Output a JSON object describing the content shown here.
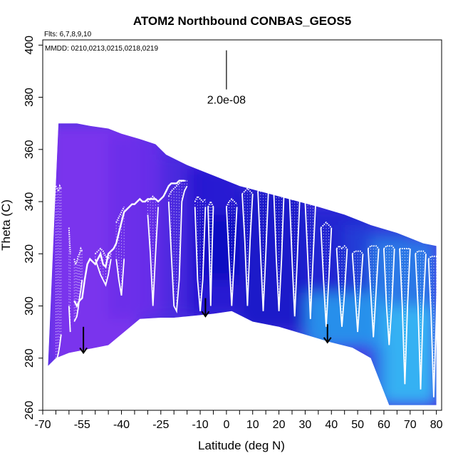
{
  "chart_data": {
    "type": "curtain",
    "title": "ATOM2 Northbound CONBAS_GEOS5",
    "subtitle_flights": "Flts: 6,7,8,9,10",
    "subtitle_dates": "MMDD: 0210,0213,0215,0218,0219",
    "xlabel": "Latitude (deg N)",
    "ylabel": "Theta (C)",
    "xlim": [
      -70,
      82
    ],
    "ylim": [
      260,
      402
    ],
    "xticks": [
      -70,
      -55,
      -40,
      -25,
      -10,
      0,
      10,
      20,
      30,
      40,
      50,
      60,
      70,
      80
    ],
    "xticks_minor": [
      -65,
      -60,
      -50,
      -45,
      -35,
      -30,
      -20,
      -15,
      -5,
      5,
      15,
      25,
      35,
      45,
      55,
      65,
      75
    ],
    "yticks": [
      260,
      280,
      300,
      320,
      340,
      360,
      380,
      400
    ],
    "scale_bar_label": "2.0e-08",
    "scale_bar": {
      "x": 0,
      "y0": 383,
      "y1": 398
    },
    "top_edge": [
      [
        -64,
        370
      ],
      [
        -57,
        370
      ],
      [
        -52,
        369
      ],
      [
        -45,
        368
      ],
      [
        -40,
        366
      ],
      [
        -33,
        364
      ],
      [
        -27,
        362
      ],
      [
        -23,
        358
      ],
      [
        -15,
        354
      ],
      [
        -5,
        350
      ],
      [
        5,
        346
      ],
      [
        20,
        342
      ],
      [
        35,
        338
      ],
      [
        45,
        335
      ],
      [
        55,
        331
      ],
      [
        65,
        328
      ],
      [
        70,
        326
      ],
      [
        75,
        324
      ],
      [
        80,
        323
      ]
    ],
    "bottom_edge": [
      [
        80,
        262
      ],
      [
        75,
        262
      ],
      [
        68,
        262
      ],
      [
        62,
        262
      ],
      [
        55,
        280
      ],
      [
        48,
        284
      ],
      [
        40,
        286
      ],
      [
        30,
        289
      ],
      [
        20,
        292
      ],
      [
        10,
        294
      ],
      [
        2,
        298
      ],
      [
        -5,
        297
      ],
      [
        -15,
        296
      ],
      [
        -20,
        295.5
      ],
      [
        -25,
        295.5
      ],
      [
        -33,
        295
      ],
      [
        -45,
        285
      ],
      [
        -55,
        283
      ],
      [
        -60,
        282
      ],
      [
        -65,
        280
      ],
      [
        -68,
        277
      ]
    ],
    "color_regions": [
      {
        "x": [
          -68,
          -33
        ],
        "y": [
          277,
          370
        ],
        "color": "#7f33ee"
      },
      {
        "x": [
          -45,
          -25
        ],
        "y": [
          295,
          366
        ],
        "color": "#6a2fea"
      },
      {
        "x": [
          -25,
          -10
        ],
        "y": [
          296,
          358
        ],
        "color": "#4a2adf"
      },
      {
        "x": [
          -15,
          5
        ],
        "y": [
          296,
          354
        ],
        "color": "#2418d0"
      },
      {
        "x": [
          -10,
          5
        ],
        "y": [
          310,
          335
        ],
        "color": "#0c0ac0"
      },
      {
        "x": [
          5,
          30
        ],
        "y": [
          290,
          346
        ],
        "color": "#1a18c6"
      },
      {
        "x": [
          30,
          55
        ],
        "y": [
          286,
          338
        ],
        "color": "#1e26cf"
      },
      {
        "x": [
          45,
          70
        ],
        "y": [
          305,
          331
        ],
        "color": "#2240d8"
      },
      {
        "x": [
          55,
          80
        ],
        "y": [
          262,
          326
        ],
        "color": "#2a7fe8"
      },
      {
        "x": [
          30,
          60
        ],
        "y": [
          284,
          305
        ],
        "color": "#2a9aee"
      },
      {
        "x": [
          60,
          80
        ],
        "y": [
          262,
          300
        ],
        "color": "#38b8f4"
      }
    ],
    "profiles": [
      {
        "x": [
          -65,
          -64.5,
          -64,
          -63.5,
          -63
        ],
        "top": [
          346,
          345,
          344,
          346,
          345
        ],
        "bottom": [
          279,
          280,
          282,
          285,
          289
        ]
      },
      {
        "x": [
          -60,
          -59.5
        ],
        "top": [
          330,
          320
        ],
        "bottom": [
          300,
          290
        ]
      },
      {
        "x": [
          -58,
          -57.5,
          -57,
          -56.5,
          -56,
          -55.5,
          -55
        ],
        "top": [
          318,
          316,
          317,
          319,
          320,
          322,
          321
        ],
        "bottom": [
          294,
          295,
          296,
          299,
          303,
          306,
          310
        ]
      },
      {
        "x": [
          -50,
          -48,
          -47,
          -46,
          -45,
          -44
        ],
        "top": [
          320,
          322,
          321,
          319,
          318,
          320
        ],
        "bottom": [
          318,
          312,
          310,
          308,
          312,
          318
        ]
      },
      {
        "x": [
          -42,
          -41,
          -40,
          -39
        ],
        "top": [
          332,
          334,
          336,
          338
        ],
        "bottom": [
          318,
          310,
          304,
          318
        ]
      },
      {
        "x": [
          -30,
          -29,
          -28,
          -27,
          -26
        ],
        "top": [
          340,
          341,
          342,
          341,
          340
        ],
        "bottom": [
          335,
          320,
          300,
          320,
          338
        ]
      },
      {
        "x": [
          -22,
          -21,
          -20,
          -19,
          -18,
          -17,
          -16,
          -15
        ],
        "top": [
          342,
          344,
          345,
          346,
          347,
          348,
          348,
          348
        ],
        "bottom": [
          340,
          320,
          300,
          298,
          310,
          340,
          344,
          346
        ]
      },
      {
        "x": [
          -12,
          -11,
          -10,
          -9,
          -8
        ],
        "top": [
          340,
          342,
          341,
          340,
          341
        ],
        "bottom": [
          338,
          310,
          298,
          310,
          338
        ]
      },
      {
        "x": [
          -7,
          -6.5,
          -6,
          -5.5,
          -5
        ],
        "top": [
          338,
          339,
          340,
          339,
          338
        ],
        "bottom": [
          338,
          320,
          300,
          320,
          338
        ]
      },
      {
        "x": [
          0,
          1,
          2,
          3,
          4
        ],
        "top": [
          338,
          340,
          341,
          340,
          339
        ],
        "bottom": [
          338,
          318,
          300,
          318,
          338
        ]
      },
      {
        "x": [
          6,
          7,
          8,
          9,
          10
        ],
        "top": [
          343,
          344,
          345,
          344,
          343
        ],
        "bottom": [
          343,
          325,
          300,
          325,
          343
        ]
      },
      {
        "x": [
          12,
          13,
          14,
          15,
          16
        ],
        "top": [
          344,
          345,
          345,
          345,
          344
        ],
        "bottom": [
          344,
          320,
          298,
          320,
          344
        ]
      },
      {
        "x": [
          18,
          19,
          20,
          21,
          22
        ],
        "top": [
          345,
          346,
          346,
          346,
          345
        ],
        "bottom": [
          345,
          318,
          298,
          318,
          345
        ]
      },
      {
        "x": [
          24,
          25,
          26,
          27,
          28
        ],
        "top": [
          343,
          344,
          344,
          344,
          343
        ],
        "bottom": [
          343,
          318,
          296,
          318,
          343
        ]
      },
      {
        "x": [
          30,
          31,
          32,
          33,
          34
        ],
        "top": [
          340,
          342,
          342,
          342,
          340
        ],
        "bottom": [
          340,
          318,
          295,
          318,
          340
        ]
      },
      {
        "x": [
          36,
          37,
          38,
          39,
          40
        ],
        "top": [
          330,
          331,
          332,
          331,
          330
        ],
        "bottom": [
          330,
          310,
          292,
          310,
          330
        ]
      },
      {
        "x": [
          42,
          43,
          44,
          45,
          46
        ],
        "top": [
          322,
          323,
          322,
          323,
          322
        ],
        "bottom": [
          322,
          305,
          292,
          305,
          322
        ]
      },
      {
        "x": [
          48,
          49,
          50,
          51,
          52
        ],
        "top": [
          320,
          321,
          321,
          321,
          320
        ],
        "bottom": [
          320,
          305,
          290,
          305,
          320
        ]
      },
      {
        "x": [
          54,
          55,
          56,
          57,
          58
        ],
        "top": [
          322,
          323,
          323,
          323,
          322
        ],
        "bottom": [
          322,
          305,
          288,
          305,
          322
        ]
      },
      {
        "x": [
          60,
          61,
          62,
          63,
          64
        ],
        "top": [
          322,
          323,
          323,
          323,
          322
        ],
        "bottom": [
          322,
          300,
          285,
          300,
          322
        ]
      },
      {
        "x": [
          66,
          67,
          68,
          69,
          70
        ],
        "top": [
          322,
          322,
          322,
          322,
          322
        ],
        "bottom": [
          322,
          300,
          270,
          300,
          322
        ]
      },
      {
        "x": [
          72,
          73,
          74,
          75,
          76
        ],
        "top": [
          320,
          321,
          321,
          321,
          320
        ],
        "bottom": [
          320,
          300,
          268,
          300,
          320
        ]
      },
      {
        "x": [
          77,
          78,
          79,
          80,
          80.5
        ],
        "top": [
          318,
          319,
          319,
          319,
          318
        ],
        "bottom": [
          318,
          296,
          265,
          296,
          318
        ]
      }
    ],
    "tropopause_line": [
      [
        -58,
        302
      ],
      [
        -57,
        300
      ],
      [
        -56,
        302
      ],
      [
        -55,
        303
      ],
      [
        -54,
        310
      ],
      [
        -53,
        316
      ],
      [
        -52,
        318
      ],
      [
        -51,
        317
      ],
      [
        -50,
        316
      ],
      [
        -49,
        318
      ],
      [
        -48,
        320
      ],
      [
        -47,
        316
      ],
      [
        -46,
        315
      ],
      [
        -45,
        320
      ],
      [
        -44,
        321
      ],
      [
        -43,
        322
      ],
      [
        -42,
        324
      ],
      [
        -41,
        328
      ],
      [
        -40,
        332
      ],
      [
        -39,
        336
      ],
      [
        -38,
        337
      ],
      [
        -37,
        338
      ],
      [
        -36,
        339
      ],
      [
        -35,
        339
      ],
      [
        -34,
        340
      ],
      [
        -33,
        341
      ],
      [
        -32,
        340
      ],
      [
        -31,
        340
      ],
      [
        -30,
        341
      ],
      [
        -29,
        341
      ],
      [
        -28,
        341
      ],
      [
        -27,
        341
      ],
      [
        -26,
        340
      ],
      [
        -25,
        341
      ],
      [
        -24,
        342
      ],
      [
        -23,
        344
      ],
      [
        -22,
        346
      ],
      [
        -21,
        347
      ],
      [
        -20,
        347
      ],
      [
        -19,
        347
      ],
      [
        -18,
        348
      ],
      [
        -17,
        348
      ],
      [
        -16,
        348
      ]
    ],
    "arrows": [
      {
        "x": -54.5,
        "y_from": 292,
        "y_to": 282
      },
      {
        "x": -8,
        "y_from": 303,
        "y_to": 296
      },
      {
        "x": 38.5,
        "y_from": 293,
        "y_to": 286
      }
    ]
  }
}
